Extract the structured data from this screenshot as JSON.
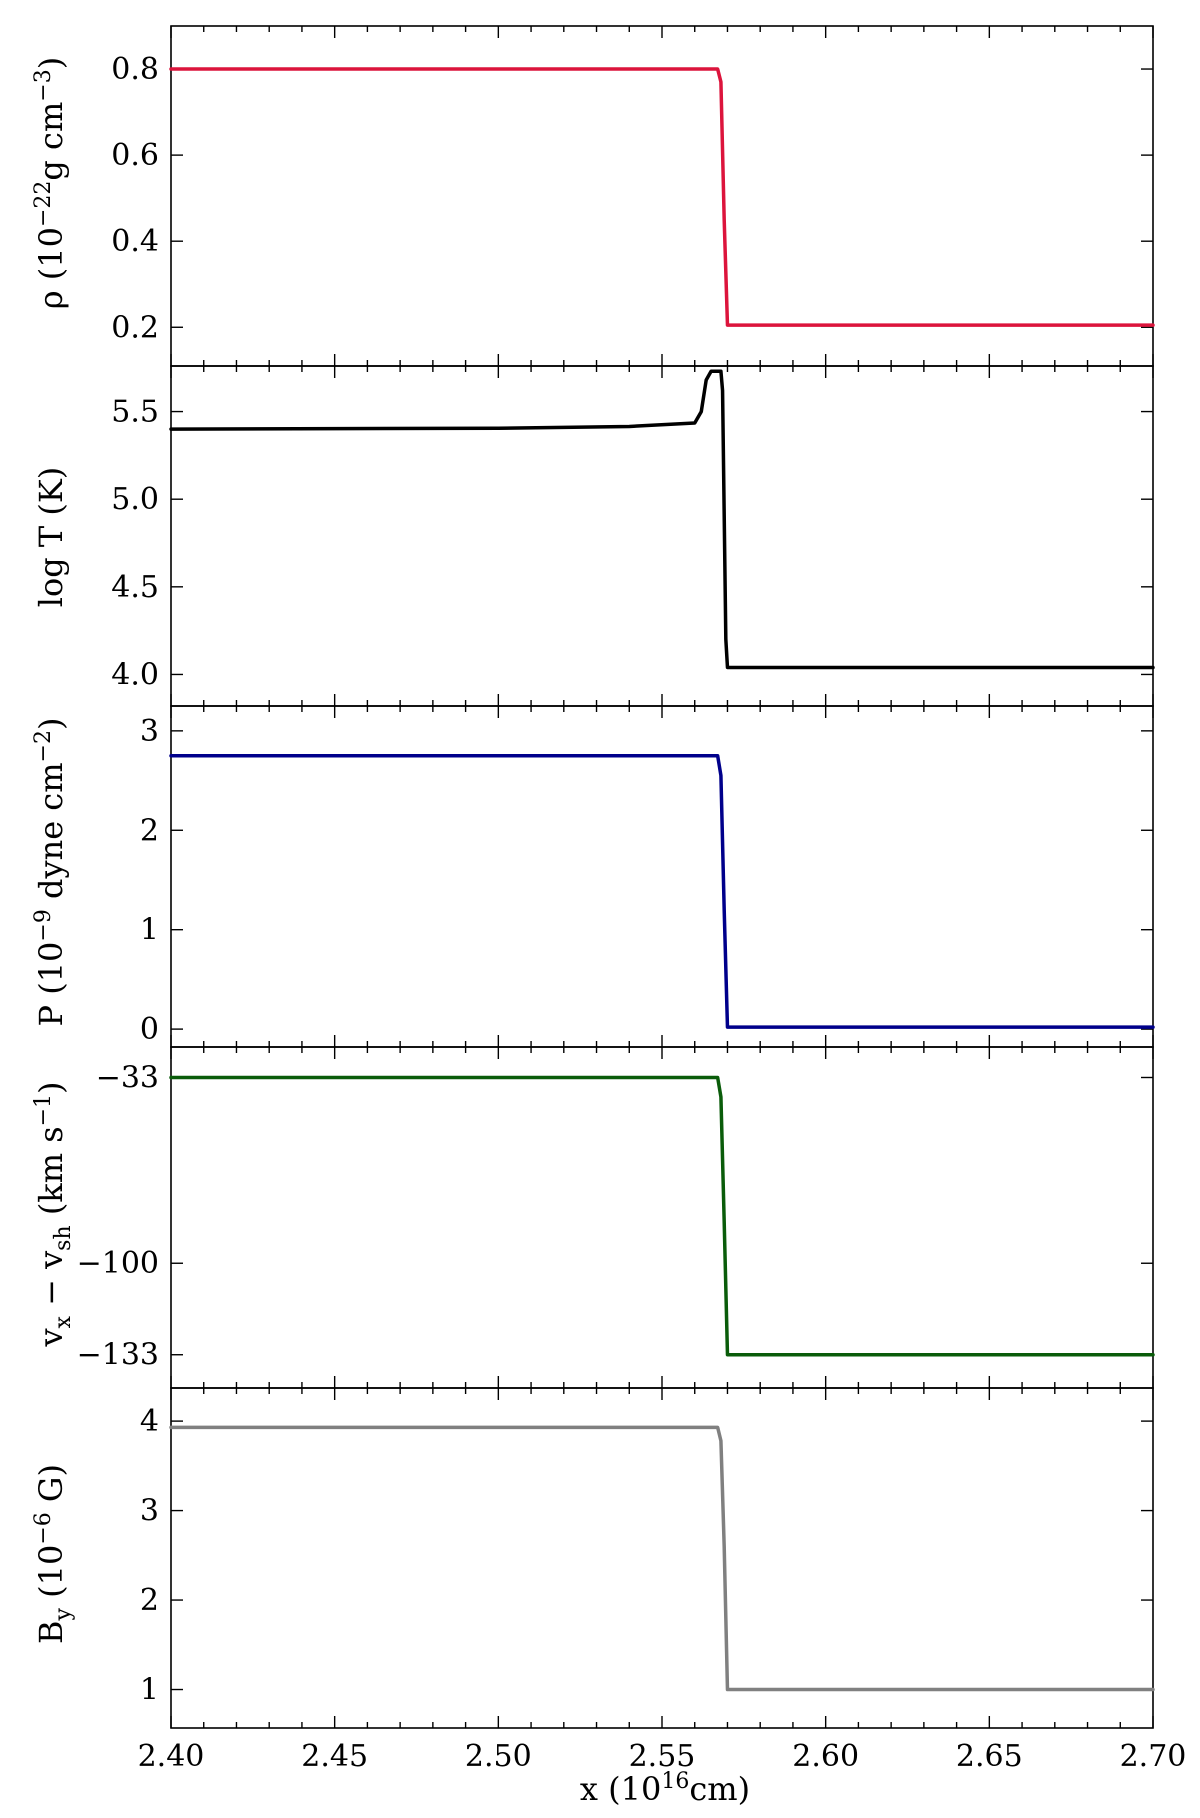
{
  "chart_data": {
    "type": "line",
    "layout": "stacked-panels-shared-x",
    "x_axis": {
      "label": "x (10^16 cm)",
      "lim": [
        2.4,
        2.7
      ],
      "ticks": [
        2.4,
        2.45,
        2.5,
        2.55,
        2.6,
        2.65,
        2.7
      ],
      "tick_labels": [
        "2.40",
        "2.45",
        "2.50",
        "2.55",
        "2.60",
        "2.65",
        "2.70"
      ]
    },
    "panels": [
      {
        "name": "density",
        "ylabel": "ρ (10^−22 g cm^−3)",
        "color": "#dc143c",
        "ylim": [
          0.11,
          0.9
        ],
        "yticks": [
          0.2,
          0.4,
          0.6,
          0.8
        ],
        "ytick_labels": [
          "0.2",
          "0.4",
          "0.6",
          "0.8"
        ],
        "x": [
          2.4,
          2.567,
          2.568,
          2.569,
          2.57,
          2.7
        ],
        "y": [
          0.8,
          0.8,
          0.77,
          0.45,
          0.205,
          0.205
        ]
      },
      {
        "name": "temperature",
        "ylabel": "log T (K)",
        "color": "#000000",
        "ylim": [
          3.82,
          5.76
        ],
        "yticks": [
          4.0,
          4.5,
          5.0,
          5.5
        ],
        "ytick_labels": [
          "4.0",
          "4.5",
          "5.0",
          "5.5"
        ],
        "x": [
          2.4,
          2.5,
          2.54,
          2.56,
          2.562,
          2.5635,
          2.565,
          2.567,
          2.568,
          2.5685,
          2.5695,
          2.57,
          2.7
        ],
        "y": [
          5.4,
          5.405,
          5.415,
          5.435,
          5.5,
          5.68,
          5.73,
          5.73,
          5.73,
          5.62,
          4.2,
          4.04,
          4.04
        ]
      },
      {
        "name": "pressure",
        "ylabel": "P (10^−9 dyne cm^−2)",
        "color": "#00008b",
        "ylim": [
          -0.18,
          3.25
        ],
        "yticks": [
          0,
          1,
          2,
          3
        ],
        "ytick_labels": [
          "0",
          "1",
          "2",
          "3"
        ],
        "x": [
          2.4,
          2.567,
          2.568,
          2.569,
          2.57,
          2.7
        ],
        "y": [
          2.75,
          2.75,
          2.55,
          1.2,
          0.02,
          0.02
        ]
      },
      {
        "name": "velocity",
        "ylabel": "v_x − v_sh (km s^−1)",
        "color": "#0a5c0a",
        "ylim": [
          -145,
          -22
        ],
        "yticks": [
          -33,
          -100,
          -133
        ],
        "ytick_labels": [
          "−33",
          "−100",
          "−133"
        ],
        "x": [
          2.4,
          2.567,
          2.568,
          2.569,
          2.57,
          2.7
        ],
        "y": [
          -33,
          -33,
          -40,
          -85,
          -133,
          -133
        ]
      },
      {
        "name": "magnetic-field",
        "ylabel": "B_y (10^−6 G)",
        "color": "#808080",
        "ylim": [
          0.57,
          4.37
        ],
        "yticks": [
          1,
          2,
          3,
          4
        ],
        "ytick_labels": [
          "1",
          "2",
          "3",
          "4"
        ],
        "x": [
          2.4,
          2.567,
          2.568,
          2.569,
          2.57,
          2.7
        ],
        "y": [
          3.93,
          3.93,
          3.78,
          2.6,
          1.0,
          1.0
        ]
      }
    ]
  }
}
